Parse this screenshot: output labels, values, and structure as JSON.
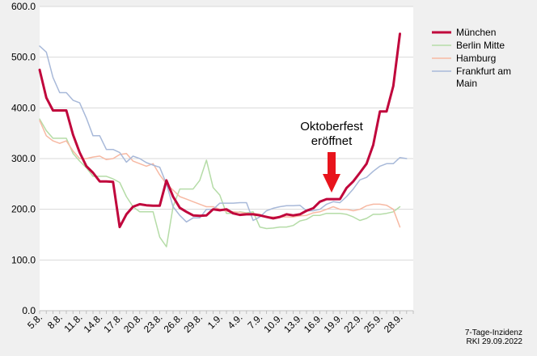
{
  "chart_data": {
    "type": "line",
    "title": "",
    "xlabel": "",
    "ylabel": "",
    "ylim": [
      0,
      600
    ],
    "y_ticks": [
      "0.0",
      "100.0",
      "200.0",
      "300.0",
      "400.0",
      "500.0",
      "600.0"
    ],
    "grid": "horizontal",
    "legend_position": "right",
    "x": [
      "5.8.",
      "6.8.",
      "7.8.",
      "8.8.",
      "9.8.",
      "10.8.",
      "11.8.",
      "12.8.",
      "13.8.",
      "14.8.",
      "15.8.",
      "16.8.",
      "17.8.",
      "18.8.",
      "19.8.",
      "20.8.",
      "21.8.",
      "22.8.",
      "23.8.",
      "24.8.",
      "25.8.",
      "26.8.",
      "27.8.",
      "28.8.",
      "29.8.",
      "30.8.",
      "31.8.",
      "1.9.",
      "2.9.",
      "3.9.",
      "4.9.",
      "5.9.",
      "6.9.",
      "7.9.",
      "8.9.",
      "9.9.",
      "10.9.",
      "11.9.",
      "12.9.",
      "13.9.",
      "14.9.",
      "15.9.",
      "16.9.",
      "17.9.",
      "18.9.",
      "19.9.",
      "20.9.",
      "21.9.",
      "22.9.",
      "23.9.",
      "24.9.",
      "25.9.",
      "26.9.",
      "27.9.",
      "28.9.",
      "29.9.",
      "30.9."
    ],
    "x_tick_labels": [
      "5.8.",
      "8.8.",
      "11.8.",
      "14.8.",
      "17.8.",
      "20.8.",
      "23.8.",
      "26.8.",
      "29.8.",
      "1.9.",
      "4.9.",
      "7.9.",
      "10.9.",
      "13.9.",
      "16.9.",
      "19.9.",
      "22.9.",
      "25.9.",
      "28.9."
    ],
    "series": [
      {
        "name": "Berlin Mitte",
        "color": "#b5dca7",
        "width": 1.5,
        "values": [
          378,
          355,
          340,
          340,
          340,
          310,
          295,
          282,
          265,
          265,
          265,
          260,
          253,
          225,
          205,
          195,
          195,
          195,
          145,
          126,
          205,
          240,
          240,
          240,
          257,
          297,
          243,
          228,
          192,
          192,
          195,
          193,
          195,
          165,
          162,
          163,
          165,
          165,
          168,
          177,
          180,
          188,
          188,
          192,
          192,
          192,
          190,
          185,
          178,
          182,
          190,
          190,
          192,
          195,
          205,
          null,
          null
        ]
      },
      {
        "name": "Hamburg",
        "color": "#f7b9a3",
        "width": 1.5,
        "values": [
          375,
          345,
          335,
          330,
          335,
          315,
          300,
          300,
          303,
          305,
          298,
          300,
          308,
          310,
          295,
          290,
          285,
          290,
          268,
          250,
          238,
          225,
          220,
          215,
          210,
          205,
          205,
          200,
          196,
          195,
          194,
          192,
          192,
          190,
          185,
          185,
          185,
          185,
          185,
          187,
          188,
          193,
          195,
          200,
          205,
          200,
          200,
          197,
          200,
          207,
          210,
          210,
          208,
          200,
          165,
          null,
          null
        ]
      },
      {
        "name": "Frankfurt am Main",
        "color": "#a8b9d9",
        "width": 1.5,
        "values": [
          522,
          510,
          460,
          430,
          430,
          415,
          410,
          380,
          345,
          345,
          318,
          318,
          312,
          293,
          305,
          300,
          292,
          287,
          283,
          250,
          205,
          188,
          175,
          183,
          183,
          200,
          200,
          212,
          212,
          212,
          213,
          213,
          178,
          185,
          197,
          202,
          205,
          207,
          207,
          208,
          197,
          197,
          200,
          210,
          215,
          213,
          225,
          240,
          258,
          263,
          275,
          285,
          290,
          290,
          302,
          300,
          null
        ]
      },
      {
        "name": "München",
        "color": "#c0063c",
        "width": 3,
        "values": [
          475,
          420,
          395,
          395,
          395,
          347,
          312,
          285,
          272,
          255,
          255,
          254,
          165,
          190,
          205,
          210,
          208,
          207,
          207,
          257,
          225,
          203,
          195,
          188,
          187,
          188,
          200,
          198,
          200,
          192,
          189,
          190,
          190,
          188,
          185,
          182,
          185,
          190,
          188,
          190,
          197,
          202,
          215,
          220,
          220,
          220,
          242,
          255,
          272,
          290,
          327,
          393,
          393,
          443,
          546,
          null,
          null
        ]
      }
    ],
    "annotation": {
      "lines": [
        "Oktoberfest",
        "eröffnet"
      ],
      "x": "18.9.",
      "arrow_color": "#e8141c"
    },
    "source_lines": [
      "7-Tage-Inzidenz",
      "RKI 29.09.2022"
    ]
  }
}
